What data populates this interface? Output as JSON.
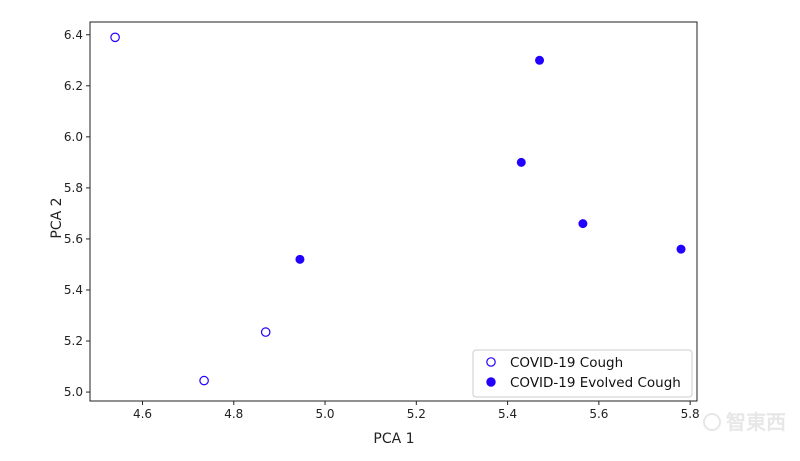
{
  "chart_data": {
    "type": "scatter",
    "title": "",
    "xlabel": "PCA 1",
    "ylabel": "PCA 2",
    "xlim": [
      4.485,
      5.815
    ],
    "ylim": [
      4.965,
      6.45
    ],
    "xticks": [
      "4.6",
      "4.8",
      "5.0",
      "5.2",
      "5.4",
      "5.6",
      "5.8"
    ],
    "yticks": [
      "5.0",
      "5.2",
      "5.4",
      "5.6",
      "5.8",
      "6.0",
      "6.2",
      "6.4"
    ],
    "grid": false,
    "legend_position": "bottom-right",
    "series": [
      {
        "name": "COVID-19 Cough",
        "marker": "hollow-circle",
        "color": "#2200ff",
        "points": [
          {
            "x": 4.54,
            "y": 6.39
          },
          {
            "x": 4.735,
            "y": 5.045
          },
          {
            "x": 4.87,
            "y": 5.235
          }
        ]
      },
      {
        "name": "COVID-19 Evolved Cough",
        "marker": "filled-circle",
        "color": "#2200ff",
        "points": [
          {
            "x": 4.945,
            "y": 5.52
          },
          {
            "x": 5.43,
            "y": 5.9
          },
          {
            "x": 5.47,
            "y": 6.3
          },
          {
            "x": 5.565,
            "y": 5.66
          },
          {
            "x": 5.78,
            "y": 5.56
          }
        ]
      }
    ]
  },
  "watermark": {
    "text": "智東西"
  }
}
